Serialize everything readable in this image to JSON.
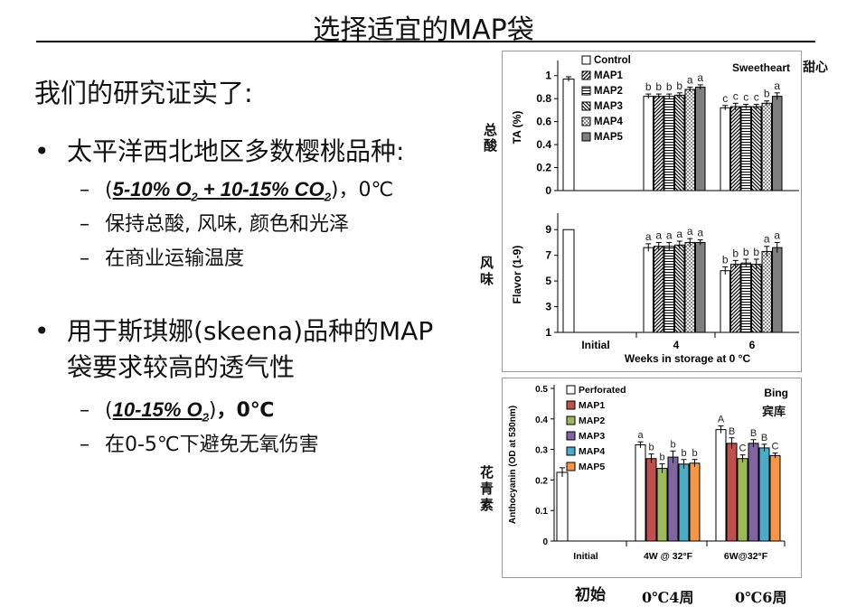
{
  "title": "选择适宜的MAP袋",
  "intro": "我们的研究证实了:",
  "bullet1": {
    "text": "太平洋西北地区多数樱桃品种:",
    "sub1": {
      "open": "(",
      "o2_pre": "5-10% O",
      "o2_sub": "2",
      "mid": " + 10-15% CO",
      "co2_sub": "2",
      "close": ")",
      "tail": "，0℃"
    },
    "sub2": "保持总酸, 风味, 颜色和光泽",
    "sub3": "在商业运输温度"
  },
  "bullet2": {
    "line1": "用于斯琪娜(skeena)品种的MAP",
    "line2": "袋要求较高的透气性",
    "sub1": {
      "open": "(",
      "o2_pre": "10-15% O",
      "o2_sub": "2",
      "close": ")",
      "tail": "，0℃"
    },
    "sub2": "在0-5℃下避免无氧伤害"
  },
  "side_labels": {
    "ta": "总酸",
    "flavor": "风味",
    "anthocyanin": "花青素",
    "sweetheart": "甜心",
    "bing": "宾库",
    "initial": "初始",
    "w4": "0℃4周",
    "w6": "0℃6周"
  },
  "chart_data": [
    {
      "type": "bar",
      "variety": "Sweetheart",
      "ylabel": "TA (%)",
      "ylim": [
        0,
        1.1
      ],
      "yticks": [
        "0",
        "0.2",
        "0.4",
        "0.6",
        "0.8",
        "1"
      ],
      "legend": [
        "Control",
        "MAP1",
        "MAP2",
        "MAP3",
        "MAP4",
        "MAP5"
      ],
      "legend_position": "top-left",
      "groups": [
        {
          "label": "Initial",
          "values": [
            0.97
          ],
          "errors": [
            0.02
          ],
          "letters": [
            ""
          ]
        },
        {
          "label": "4",
          "values": [
            0.82,
            0.82,
            0.82,
            0.83,
            0.88,
            0.9
          ],
          "errors": [
            0.02,
            0.02,
            0.02,
            0.02,
            0.02,
            0.02
          ],
          "letters": [
            "b",
            "b",
            "b",
            "b",
            "a",
            "a"
          ]
        },
        {
          "label": "6",
          "values": [
            0.72,
            0.73,
            0.73,
            0.73,
            0.76,
            0.82
          ],
          "errors": [
            0.02,
            0.03,
            0.02,
            0.02,
            0.02,
            0.03
          ],
          "letters": [
            "c",
            "c",
            "c",
            "c",
            "b",
            "a"
          ]
        }
      ]
    },
    {
      "type": "bar",
      "ylabel": "Flavor (1-9)",
      "xlabel": "Weeks in storage at 0 °C",
      "ylim": [
        1,
        10
      ],
      "yticks": [
        "1",
        "3",
        "5",
        "7",
        "9"
      ],
      "categories": [
        "Initial",
        "4",
        "6"
      ],
      "groups": [
        {
          "label": "Initial",
          "values": [
            9.0
          ],
          "errors": [
            0
          ],
          "letters": [
            ""
          ]
        },
        {
          "label": "4",
          "values": [
            7.6,
            7.7,
            7.7,
            7.8,
            8.0,
            8.0
          ],
          "errors": [
            0.3,
            0.3,
            0.3,
            0.3,
            0.3,
            0.2
          ],
          "letters": [
            "a",
            "a",
            "a",
            "a",
            "a",
            "a"
          ]
        },
        {
          "label": "6",
          "values": [
            5.8,
            6.3,
            6.4,
            6.3,
            7.3,
            7.6
          ],
          "errors": [
            0.3,
            0.3,
            0.3,
            0.4,
            0.4,
            0.4
          ],
          "letters": [
            "b",
            "b",
            "b",
            "b",
            "a",
            "a"
          ]
        }
      ]
    },
    {
      "type": "bar",
      "variety": "Bing",
      "ylabel": "Anthocyanin (OD at 530nm)",
      "ylim": [
        0,
        0.5
      ],
      "yticks": [
        "0",
        "0.1",
        "0.2",
        "0.3",
        "0.4",
        "0.5"
      ],
      "legend": [
        "Perforated",
        "MAP1",
        "MAP2",
        "MAP3",
        "MAP4",
        "MAP5"
      ],
      "legend_position": "top-left",
      "categories": [
        "Initial",
        "4W @ 32°F",
        "6W@32°F"
      ],
      "groups": [
        {
          "label": "Initial",
          "values": [
            0.225
          ],
          "errors": [
            0.015
          ],
          "letters": [
            ""
          ]
        },
        {
          "label": "4W @ 32°F",
          "values": [
            0.315,
            0.27,
            0.238,
            0.275,
            0.252,
            0.255
          ],
          "errors": [
            0.01,
            0.015,
            0.015,
            0.02,
            0.015,
            0.012
          ],
          "letters": [
            "a",
            "b",
            "b",
            "b",
            "b",
            "b"
          ]
        },
        {
          "label": "6W@32°F",
          "values": [
            0.365,
            0.32,
            0.27,
            0.32,
            0.305,
            0.28
          ],
          "errors": [
            0.012,
            0.018,
            0.012,
            0.012,
            0.012,
            0.008
          ],
          "letters": [
            "A",
            "B",
            "C",
            "B",
            "B",
            "C"
          ]
        }
      ],
      "series_colors": [
        "#ffffff",
        "#c0504d",
        "#9bbb59",
        "#8064a2",
        "#4bacc6",
        "#f79646"
      ]
    }
  ]
}
